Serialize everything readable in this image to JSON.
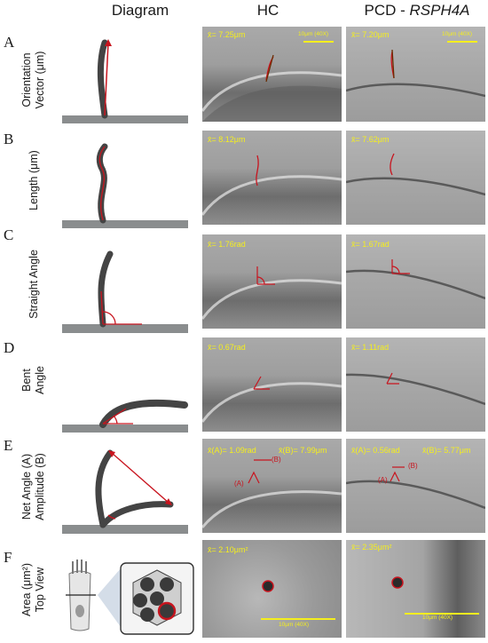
{
  "headers": {
    "diagram": "Diagram",
    "hc": "HC",
    "pcd_prefix": "PCD - ",
    "pcd_gene": "RSPH4A"
  },
  "rows": [
    {
      "letter": "A",
      "label_lines": [
        "Orientation",
        "Vector (μm)"
      ],
      "hc_value": "x̄= 7.25μm",
      "pcd_value": "x̄= 7.20μm",
      "scale_label": "10μm (40X)"
    },
    {
      "letter": "B",
      "label_lines": [
        "Length (μm)"
      ],
      "hc_value": "x̄= 8.12μm",
      "pcd_value": "x̄= 7.62μm"
    },
    {
      "letter": "C",
      "label_lines": [
        "Straight Angle"
      ],
      "hc_value": "x̄= 1.76rad",
      "pcd_value": "x̄= 1.67rad"
    },
    {
      "letter": "D",
      "label_lines": [
        "Bent",
        "Angle"
      ],
      "hc_value": "x̄= 0.67rad",
      "pcd_value": "x̄= 1.11rad"
    },
    {
      "letter": "E",
      "label_lines": [
        "Net Angle (A)",
        "Amplitude (B)"
      ],
      "hc_value_a": "x̄(A)= 1.09rad",
      "hc_value_b": "x̄(B)= 7.99μm",
      "pcd_value_a": "x̄(A)= 0.56rad",
      "pcd_value_b": "x̄(B)= 5.77μm",
      "mark_a": "(A)",
      "mark_b": "(B)"
    },
    {
      "letter": "F",
      "label_lines": [
        "Area (μm²)",
        "Top View"
      ],
      "hc_value": "x̄= 2.10μm²",
      "pcd_value": "x̄= 2.35μm²",
      "scale_label": "10μm (40X)"
    }
  ],
  "colors": {
    "cilium": "#444444",
    "ground": "#8a8d8e",
    "trace": "#c8141e",
    "value_text": "#f4ee1e"
  }
}
